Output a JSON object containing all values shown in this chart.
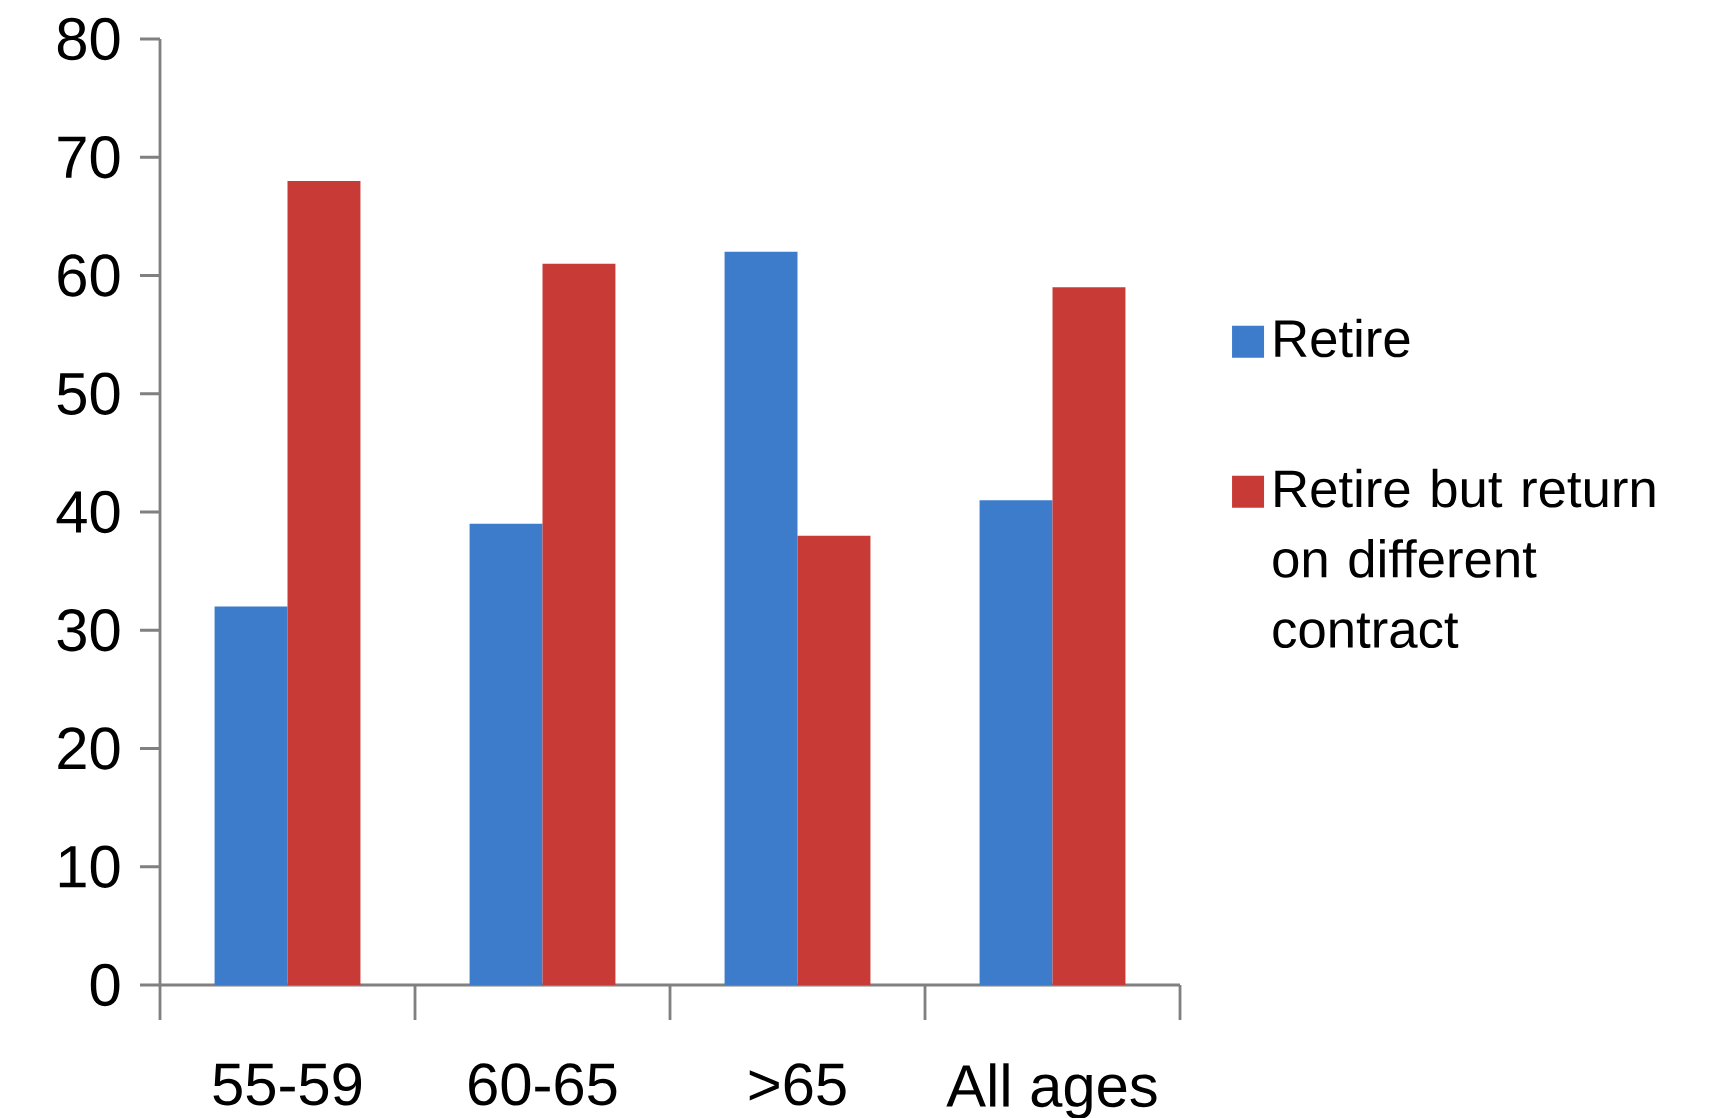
{
  "chart_data": {
    "type": "bar",
    "categories": [
      "55-59",
      "60-65",
      ">65",
      "All ages"
    ],
    "series": [
      {
        "name": "Retire",
        "color": "#3c7ccb",
        "values": [
          32,
          39,
          62,
          41
        ]
      },
      {
        "name": "Retire but return on different contract",
        "color": "#c83a36",
        "values": [
          68,
          61,
          38,
          59
        ]
      }
    ],
    "ylim": [
      0,
      80
    ],
    "yticks": [
      0,
      10,
      20,
      30,
      40,
      50,
      60,
      70,
      80
    ],
    "legend": "right",
    "grid": false
  }
}
